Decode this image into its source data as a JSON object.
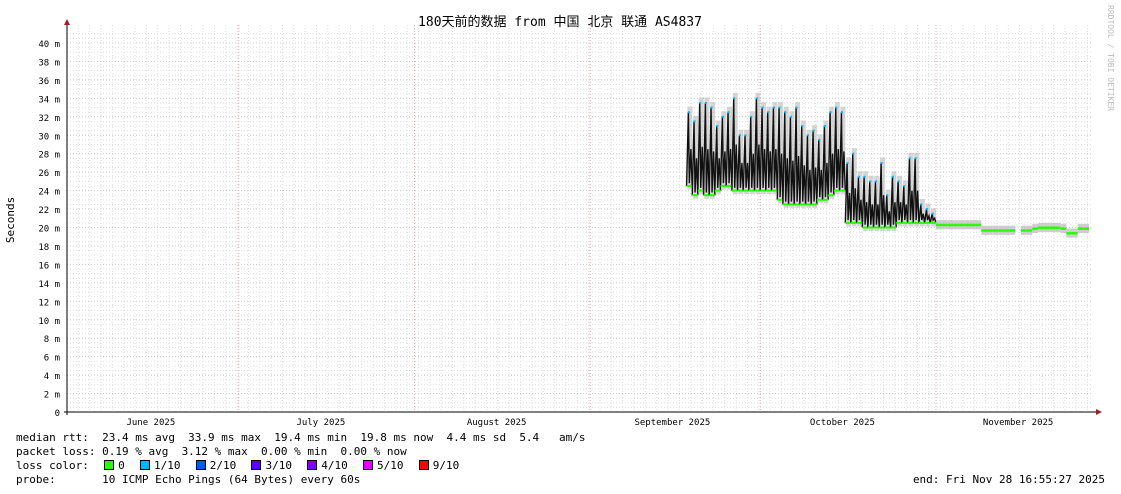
{
  "chart_data": {
    "type": "line",
    "title": "180天前的数据 from 中国 北京 联通 AS4837",
    "ylabel": "Seconds",
    "ylim": [
      0,
      40
    ],
    "yticks": [
      "0",
      "2 m",
      "4 m",
      "6 m",
      "8 m",
      "10 m",
      "12 m",
      "14 m",
      "16 m",
      "18 m",
      "20 m",
      "22 m",
      "24 m",
      "26 m",
      "28 m",
      "30 m",
      "32 m",
      "34 m",
      "36 m",
      "38 m",
      "40 m"
    ],
    "xlabels": [
      "June 2025",
      "July 2025",
      "August 2025",
      "September 2025",
      "October 2025",
      "November 2025"
    ],
    "xrange": [
      "2025-06-01",
      "2025-11-28"
    ],
    "grid": true,
    "watermark": "RRDTOOL / TOBI OETIKER",
    "series_daily_ms": [
      [
        "2025-09-18",
        24.5,
        32.5
      ],
      [
        "2025-09-19",
        23.5,
        31.5
      ],
      [
        "2025-09-20",
        24,
        33.5
      ],
      [
        "2025-09-21",
        23.5,
        33.5
      ],
      [
        "2025-09-22",
        23.5,
        33
      ],
      [
        "2025-09-23",
        24,
        31
      ],
      [
        "2025-09-24",
        24.5,
        32
      ],
      [
        "2025-09-25",
        24.5,
        32.5
      ],
      [
        "2025-09-26",
        24,
        34
      ],
      [
        "2025-09-27",
        24,
        30
      ],
      [
        "2025-09-28",
        24,
        30
      ],
      [
        "2025-09-29",
        24,
        32
      ],
      [
        "2025-09-30",
        24,
        34
      ],
      [
        "2025-10-01",
        24,
        33
      ],
      [
        "2025-10-02",
        24,
        32.5
      ],
      [
        "2025-10-03",
        24,
        33
      ],
      [
        "2025-10-04",
        23,
        33
      ],
      [
        "2025-10-05",
        22.5,
        32.5
      ],
      [
        "2025-10-06",
        22.5,
        32
      ],
      [
        "2025-10-07",
        22.5,
        33
      ],
      [
        "2025-10-08",
        22.5,
        31
      ],
      [
        "2025-10-09",
        22.5,
        30
      ],
      [
        "2025-10-10",
        22.5,
        30.5
      ],
      [
        "2025-10-11",
        23,
        29.5
      ],
      [
        "2025-10-12",
        23,
        31
      ],
      [
        "2025-10-13",
        23.5,
        32.5
      ],
      [
        "2025-10-14",
        24,
        33
      ],
      [
        "2025-10-15",
        24,
        32.5
      ],
      [
        "2025-10-16",
        20.5,
        27
      ],
      [
        "2025-10-17",
        20.5,
        28
      ],
      [
        "2025-10-18",
        20.5,
        25.5
      ],
      [
        "2025-10-19",
        20,
        25.5
      ],
      [
        "2025-10-20",
        20,
        25
      ],
      [
        "2025-10-21",
        20,
        25
      ],
      [
        "2025-10-22",
        20,
        27
      ],
      [
        "2025-10-23",
        20,
        23.5
      ],
      [
        "2025-10-24",
        20,
        25.5
      ],
      [
        "2025-10-25",
        20.5,
        25
      ],
      [
        "2025-10-26",
        20.5,
        24.5
      ],
      [
        "2025-10-27",
        20.5,
        27.5
      ],
      [
        "2025-10-28",
        20.5,
        27.5
      ],
      [
        "2025-10-29",
        20.5,
        22.5
      ],
      [
        "2025-10-30",
        20.5,
        22
      ],
      [
        "2025-10-31",
        20.5,
        21.5
      ],
      [
        "2025-11-01",
        20.3,
        20.3
      ],
      [
        "2025-11-02",
        20.3,
        20.3
      ],
      [
        "2025-11-03",
        20.3,
        20.3
      ],
      [
        "2025-11-04",
        20.3,
        20.3
      ],
      [
        "2025-11-05",
        20.3,
        20.3
      ],
      [
        "2025-11-06",
        20.3,
        20.3
      ],
      [
        "2025-11-07",
        20.3,
        20.3
      ],
      [
        "2025-11-08",
        20.3,
        20.3
      ],
      [
        "2025-11-09",
        19.7,
        19.7
      ],
      [
        "2025-11-10",
        19.7,
        19.7
      ],
      [
        "2025-11-11",
        19.7,
        19.7
      ],
      [
        "2025-11-12",
        19.7,
        19.7
      ],
      [
        "2025-11-13",
        19.7,
        19.7
      ],
      [
        "2025-11-14",
        19.7,
        19.7
      ],
      [
        "2025-11-16",
        19.7,
        19.7
      ],
      [
        "2025-11-17",
        19.7,
        19.7
      ],
      [
        "2025-11-18",
        19.9,
        20.2
      ],
      [
        "2025-11-19",
        20,
        20
      ],
      [
        "2025-11-20",
        20,
        20
      ],
      [
        "2025-11-21",
        20,
        20
      ],
      [
        "2025-11-22",
        20,
        20
      ],
      [
        "2025-11-23",
        19.9,
        19.9
      ],
      [
        "2025-11-24",
        19.4,
        19.4
      ],
      [
        "2025-11-25",
        19.4,
        19.4
      ],
      [
        "2025-11-26",
        19.9,
        19.9
      ],
      [
        "2025-11-27",
        19.9,
        19.9
      ]
    ]
  },
  "legend": {
    "median_rtt": "median rtt:  23.4 ms avg  33.9 ms max  19.4 ms min  19.8 ms now  4.4 ms sd  5.4   am/s",
    "packet_loss": "packet loss: 0.19 % avg  3.12 % max  0.00 % min  0.00 % now",
    "loss_color_label": "loss color:",
    "loss_colors": [
      {
        "label": "0",
        "color": "#26ff00"
      },
      {
        "label": "1/10",
        "color": "#00b8ff"
      },
      {
        "label": "2/10",
        "color": "#0059ff"
      },
      {
        "label": "3/10",
        "color": "#5e00ff"
      },
      {
        "label": "4/10",
        "color": "#7e00ff"
      },
      {
        "label": "5/10",
        "color": "#dd00ff"
      },
      {
        "label": "9/10",
        "color": "#ff0000"
      }
    ],
    "probe": "probe:       10 ICMP Echo Pings (64 Bytes) every 60s",
    "end": "end: Fri Nov 28 16:55:27 2025"
  }
}
